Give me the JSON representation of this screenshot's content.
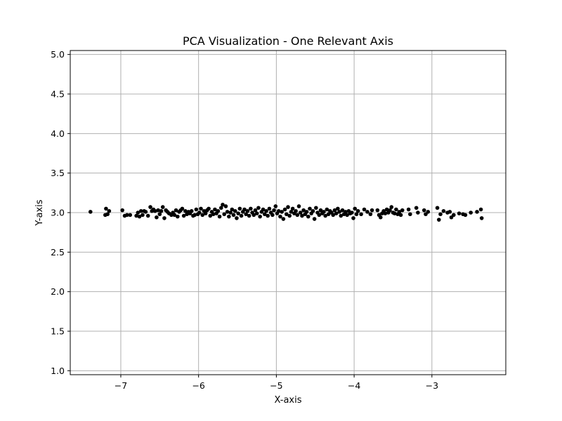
{
  "chart_data": {
    "type": "scatter",
    "title": "PCA Visualization - One Relevant Axis",
    "xlabel": "X-axis",
    "ylabel": "Y-axis",
    "xlim": [
      -7.65,
      -2.05
    ],
    "ylim": [
      0.95,
      5.05
    ],
    "xticks": [
      -7,
      -6,
      -5,
      -4,
      -3
    ],
    "xtick_labels": [
      "−7",
      "−6",
      "−5",
      "−4",
      "−3"
    ],
    "yticks": [
      1.0,
      1.5,
      2.0,
      2.5,
      3.0,
      3.5,
      4.0,
      4.5,
      5.0
    ],
    "ytick_labels": [
      "1.0",
      "1.5",
      "2.0",
      "2.5",
      "3.0",
      "3.5",
      "4.0",
      "4.5",
      "5.0"
    ],
    "grid": true,
    "marker_color": "#000000",
    "grid_color": "#b0b0b0",
    "points": [
      [
        -7.39,
        3.01
      ],
      [
        -7.2,
        2.97
      ],
      [
        -7.19,
        3.05
      ],
      [
        -7.17,
        2.98
      ],
      [
        -7.15,
        3.02
      ],
      [
        -6.98,
        3.03
      ],
      [
        -6.95,
        2.96
      ],
      [
        -6.92,
        2.97
      ],
      [
        -6.88,
        2.97
      ],
      [
        -6.8,
        2.96
      ],
      [
        -6.78,
        3.0
      ],
      [
        -6.76,
        2.95
      ],
      [
        -6.74,
        3.02
      ],
      [
        -6.72,
        2.97
      ],
      [
        -6.7,
        3.02
      ],
      [
        -6.68,
        3.01
      ],
      [
        -6.65,
        2.96
      ],
      [
        -6.62,
        3.07
      ],
      [
        -6.6,
        3.02
      ],
      [
        -6.58,
        3.04
      ],
      [
        -6.56,
        3.02
      ],
      [
        -6.54,
        2.94
      ],
      [
        -6.52,
        3.03
      ],
      [
        -6.5,
        2.98
      ],
      [
        -6.48,
        3.02
      ],
      [
        -6.46,
        3.07
      ],
      [
        -6.44,
        2.93
      ],
      [
        -6.42,
        3.03
      ],
      [
        -6.4,
        3.01
      ],
      [
        -6.38,
        2.99
      ],
      [
        -6.35,
        2.97
      ],
      [
        -6.33,
        3.0
      ],
      [
        -6.31,
        2.97
      ],
      [
        -6.29,
        3.03
      ],
      [
        -6.27,
        2.95
      ],
      [
        -6.25,
        3.01
      ],
      [
        -6.23,
        3.03
      ],
      [
        -6.21,
        3.05
      ],
      [
        -6.19,
        2.96
      ],
      [
        -6.17,
        3.02
      ],
      [
        -6.15,
        2.98
      ],
      [
        -6.13,
        3.01
      ],
      [
        -6.11,
        2.99
      ],
      [
        -6.09,
        3.02
      ],
      [
        -6.07,
        2.96
      ],
      [
        -6.05,
        2.97
      ],
      [
        -6.03,
        3.04
      ],
      [
        -6.01,
        2.98
      ],
      [
        -5.99,
        3.0
      ],
      [
        -5.97,
        3.05
      ],
      [
        -5.95,
        2.97
      ],
      [
        -5.93,
        3.02
      ],
      [
        -5.91,
        2.99
      ],
      [
        -5.89,
        3.03
      ],
      [
        -5.87,
        3.05
      ],
      [
        -5.85,
        2.96
      ],
      [
        -5.83,
        3.01
      ],
      [
        -5.81,
        2.98
      ],
      [
        -5.79,
        3.04
      ],
      [
        -5.77,
        2.99
      ],
      [
        -5.75,
        3.02
      ],
      [
        -5.73,
        2.95
      ],
      [
        -5.71,
        3.06
      ],
      [
        -5.69,
        3.1
      ],
      [
        -5.67,
        2.98
      ],
      [
        -5.65,
        3.08
      ],
      [
        -5.63,
        3.01
      ],
      [
        -5.61,
        2.95
      ],
      [
        -5.59,
        3.0
      ],
      [
        -5.57,
        3.04
      ],
      [
        -5.55,
        2.97
      ],
      [
        -5.53,
        3.02
      ],
      [
        -5.51,
        2.93
      ],
      [
        -5.49,
        2.99
      ],
      [
        -5.47,
        3.05
      ],
      [
        -5.45,
        2.96
      ],
      [
        -5.43,
        3.01
      ],
      [
        -5.41,
        3.04
      ],
      [
        -5.39,
        2.98
      ],
      [
        -5.37,
        3.02
      ],
      [
        -5.35,
        2.96
      ],
      [
        -5.33,
        3.05
      ],
      [
        -5.31,
        3.0
      ],
      [
        -5.29,
        2.97
      ],
      [
        -5.27,
        3.03
      ],
      [
        -5.25,
        2.99
      ],
      [
        -5.23,
        3.06
      ],
      [
        -5.21,
        2.95
      ],
      [
        -5.19,
        3.01
      ],
      [
        -5.17,
        3.04
      ],
      [
        -5.15,
        2.98
      ],
      [
        -5.13,
        3.02
      ],
      [
        -5.11,
        2.96
      ],
      [
        -5.09,
        3.05
      ],
      [
        -5.07,
        3.0
      ],
      [
        -5.05,
        2.97
      ],
      [
        -5.03,
        3.03
      ],
      [
        -5.01,
        3.08
      ],
      [
        -4.99,
        2.99
      ],
      [
        -4.97,
        3.02
      ],
      [
        -4.95,
        2.95
      ],
      [
        -4.93,
        3.01
      ],
      [
        -4.91,
        2.92
      ],
      [
        -4.89,
        3.04
      ],
      [
        -4.87,
        2.98
      ],
      [
        -4.85,
        3.07
      ],
      [
        -4.83,
        2.96
      ],
      [
        -4.81,
        3.01
      ],
      [
        -4.79,
        3.05
      ],
      [
        -4.77,
        2.99
      ],
      [
        -4.75,
        3.02
      ],
      [
        -4.73,
        2.97
      ],
      [
        -4.71,
        3.08
      ],
      [
        -4.69,
        3.0
      ],
      [
        -4.67,
        2.96
      ],
      [
        -4.65,
        3.03
      ],
      [
        -4.63,
        2.98
      ],
      [
        -4.61,
        3.01
      ],
      [
        -4.59,
        2.95
      ],
      [
        -4.57,
        3.05
      ],
      [
        -4.55,
        2.99
      ],
      [
        -4.53,
        3.02
      ],
      [
        -4.51,
        2.92
      ],
      [
        -4.49,
        3.06
      ],
      [
        -4.47,
        3.0
      ],
      [
        -4.45,
        2.97
      ],
      [
        -4.43,
        3.03
      ],
      [
        -4.41,
        2.99
      ],
      [
        -4.39,
        3.01
      ],
      [
        -4.37,
        2.96
      ],
      [
        -4.35,
        3.04
      ],
      [
        -4.33,
        2.98
      ],
      [
        -4.31,
        3.02
      ],
      [
        -4.29,
        3.0
      ],
      [
        -4.27,
        2.97
      ],
      [
        -4.25,
        3.03
      ],
      [
        -4.23,
        2.99
      ],
      [
        -4.21,
        3.05
      ],
      [
        -4.19,
        3.01
      ],
      [
        -4.17,
        2.96
      ],
      [
        -4.15,
        3.03
      ],
      [
        -4.13,
        2.98
      ],
      [
        -4.11,
        3.01
      ],
      [
        -4.09,
        2.97
      ],
      [
        -4.07,
        3.02
      ],
      [
        -4.05,
        2.99
      ],
      [
        -4.03,
        3.0
      ],
      [
        -4.01,
        2.93
      ],
      [
        -3.99,
        3.05
      ],
      [
        -3.97,
        2.98
      ],
      [
        -3.95,
        3.02
      ],
      [
        -3.91,
        2.98
      ],
      [
        -3.87,
        3.04
      ],
      [
        -3.83,
        3.01
      ],
      [
        -3.79,
        2.98
      ],
      [
        -3.77,
        3.03
      ],
      [
        -3.7,
        3.03
      ],
      [
        -3.68,
        2.97
      ],
      [
        -3.66,
        2.94
      ],
      [
        -3.64,
        2.99
      ],
      [
        -3.62,
        3.02
      ],
      [
        -3.6,
        2.99
      ],
      [
        -3.58,
        3.04
      ],
      [
        -3.56,
        3.0
      ],
      [
        -3.54,
        3.03
      ],
      [
        -3.52,
        3.07
      ],
      [
        -3.5,
        3.0
      ],
      [
        -3.48,
        2.99
      ],
      [
        -3.46,
        3.04
      ],
      [
        -3.44,
        2.98
      ],
      [
        -3.42,
        3.01
      ],
      [
        -3.4,
        2.97
      ],
      [
        -3.38,
        3.03
      ],
      [
        -3.3,
        3.04
      ],
      [
        -3.28,
        2.98
      ],
      [
        -3.2,
        3.06
      ],
      [
        -3.18,
        3.0
      ],
      [
        -3.1,
        3.03
      ],
      [
        -3.08,
        2.98
      ],
      [
        -3.05,
        3.01
      ],
      [
        -2.93,
        3.06
      ],
      [
        -2.91,
        2.91
      ],
      [
        -2.89,
        2.98
      ],
      [
        -2.85,
        3.02
      ],
      [
        -2.8,
        3.0
      ],
      [
        -2.77,
        3.01
      ],
      [
        -2.75,
        2.94
      ],
      [
        -2.72,
        2.97
      ],
      [
        -2.65,
        2.99
      ],
      [
        -2.6,
        2.98
      ],
      [
        -2.57,
        2.97
      ],
      [
        -2.5,
        3.0
      ],
      [
        -2.42,
        3.01
      ],
      [
        -2.37,
        3.04
      ],
      [
        -2.36,
        2.93
      ]
    ]
  }
}
